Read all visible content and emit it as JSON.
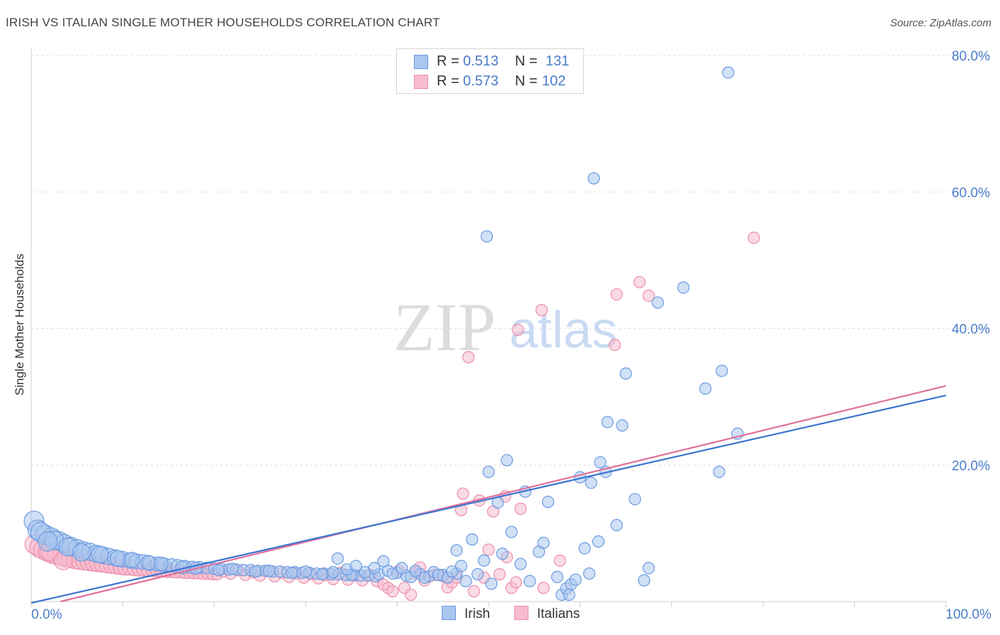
{
  "header": {
    "title": "IRISH VS ITALIAN SINGLE MOTHER HOUSEHOLDS CORRELATION CHART",
    "source": "Source: ZipAtlas.com"
  },
  "legend": {
    "irish": {
      "r_label": "R =",
      "r_value": "0.513",
      "n_label": "N =",
      "n_value": "131"
    },
    "italians": {
      "r_label": "R =",
      "r_value": "0.573",
      "n_label": "N =",
      "n_value": "102"
    }
  },
  "watermark": {
    "zip": "ZIP",
    "atlas": "atlas"
  },
  "colors": {
    "irish_fill": "#a9c6ef",
    "irish_stroke": "#6b9be0",
    "irish_line": "#3b74d1",
    "italians_fill": "#f6bccd",
    "italians_stroke": "#ec8fab",
    "italians_line": "#e0709a",
    "tick_color": "#4a7cc9",
    "grid": "#dddddd"
  },
  "chart_data": {
    "type": "scatter",
    "title": "IRISH VS ITALIAN SINGLE MOTHER HOUSEHOLDS CORRELATION CHART",
    "xlabel": "",
    "ylabel": "Single Mother Households",
    "xlim": [
      0,
      100
    ],
    "ylim": [
      0,
      80
    ],
    "x_tick_labels": [
      "0.0%",
      "100.0%"
    ],
    "y_ticks": [
      20,
      40,
      60,
      80
    ],
    "y_tick_labels": [
      "20.0%",
      "40.0%",
      "60.0%",
      "80.0%"
    ],
    "grid": "horizontal dashed",
    "legend_position": "top-center and bottom",
    "series": [
      {
        "name": "Irish",
        "r": 0.513,
        "n": 131,
        "trend": {
          "x": [
            0,
            100
          ],
          "y": [
            -0.2,
            30.2
          ]
        },
        "points": [
          [
            0.3,
            11.8
          ],
          [
            0.7,
            10.5
          ],
          [
            1.5,
            9.8
          ],
          [
            2.2,
            9.4
          ],
          [
            3.0,
            8.9
          ],
          [
            3.6,
            8.5
          ],
          [
            4.3,
            8.1
          ],
          [
            5.0,
            7.8
          ],
          [
            5.7,
            7.5
          ],
          [
            6.4,
            7.3
          ],
          [
            7.1,
            7.0
          ],
          [
            7.8,
            6.8
          ],
          [
            8.5,
            6.6
          ],
          [
            9.2,
            6.4
          ],
          [
            10.0,
            6.2
          ],
          [
            10.8,
            6.0
          ],
          [
            11.5,
            5.9
          ],
          [
            12.2,
            5.8
          ],
          [
            13.0,
            5.6
          ],
          [
            13.8,
            5.5
          ],
          [
            14.5,
            5.4
          ],
          [
            15.3,
            5.3
          ],
          [
            16.0,
            5.2
          ],
          [
            16.8,
            5.1
          ],
          [
            17.6,
            5.0
          ],
          [
            18.4,
            5.0
          ],
          [
            19.2,
            4.9
          ],
          [
            20.0,
            4.8
          ],
          [
            20.8,
            4.8
          ],
          [
            21.6,
            4.7
          ],
          [
            22.4,
            4.7
          ],
          [
            23.2,
            4.6
          ],
          [
            24.0,
            4.6
          ],
          [
            24.8,
            4.5
          ],
          [
            25.6,
            4.5
          ],
          [
            26.4,
            4.4
          ],
          [
            27.2,
            4.4
          ],
          [
            28.0,
            4.3
          ],
          [
            28.8,
            4.3
          ],
          [
            29.6,
            4.2
          ],
          [
            30.4,
            4.2
          ],
          [
            31.2,
            4.1
          ],
          [
            32.0,
            4.1
          ],
          [
            32.8,
            4.0
          ],
          [
            33.6,
            4.0
          ],
          [
            34.4,
            3.9
          ],
          [
            35.2,
            3.9
          ],
          [
            36.0,
            3.8
          ],
          [
            36.8,
            3.8
          ],
          [
            37.6,
            3.7
          ],
          [
            1.0,
            10.2
          ],
          [
            2.5,
            9.0
          ],
          [
            4.0,
            8.0
          ],
          [
            5.5,
            7.2
          ],
          [
            7.5,
            6.9
          ],
          [
            9.5,
            6.3
          ],
          [
            11.0,
            6.1
          ],
          [
            12.8,
            5.7
          ],
          [
            14.2,
            5.5
          ],
          [
            16.5,
            5.0
          ],
          [
            18.0,
            4.9
          ],
          [
            20.5,
            4.6
          ],
          [
            22.0,
            4.8
          ],
          [
            24.5,
            4.4
          ],
          [
            26.0,
            4.5
          ],
          [
            28.5,
            4.2
          ],
          [
            30.0,
            4.4
          ],
          [
            31.8,
            4.0
          ],
          [
            33.0,
            4.3
          ],
          [
            35.0,
            3.9
          ],
          [
            36.5,
            4.3
          ],
          [
            38.0,
            4.0
          ],
          [
            39.0,
            4.5
          ],
          [
            40.0,
            4.2
          ],
          [
            41.0,
            3.8
          ],
          [
            42.5,
            4.0
          ],
          [
            43.5,
            3.7
          ],
          [
            44.0,
            4.3
          ],
          [
            45.0,
            3.9
          ],
          [
            46.5,
            4.1
          ],
          [
            34.5,
            4.7
          ],
          [
            33.5,
            6.3
          ],
          [
            35.5,
            5.2
          ],
          [
            37.5,
            4.9
          ],
          [
            38.5,
            5.9
          ],
          [
            39.5,
            4.1
          ],
          [
            40.5,
            4.9
          ],
          [
            41.5,
            3.6
          ],
          [
            42.0,
            4.5
          ],
          [
            43.0,
            3.5
          ],
          [
            44.5,
            3.9
          ],
          [
            45.5,
            3.5
          ],
          [
            46.0,
            4.4
          ],
          [
            47.0,
            5.2
          ],
          [
            47.5,
            3.0
          ],
          [
            48.2,
            9.1
          ],
          [
            49.5,
            6.0
          ],
          [
            50.3,
            2.6
          ],
          [
            51.0,
            14.5
          ],
          [
            51.5,
            7.0
          ],
          [
            52.0,
            20.7
          ],
          [
            52.5,
            10.2
          ],
          [
            53.5,
            5.5
          ],
          [
            54.5,
            3.0
          ],
          [
            55.5,
            7.3
          ],
          [
            56.0,
            8.6
          ],
          [
            57.5,
            3.6
          ],
          [
            58.0,
            1.0
          ],
          [
            58.5,
            1.9
          ],
          [
            59.0,
            2.5
          ],
          [
            59.5,
            3.2
          ],
          [
            60.0,
            18.2
          ],
          [
            60.5,
            7.8
          ],
          [
            61.0,
            4.1
          ],
          [
            62.0,
            8.8
          ],
          [
            63.0,
            26.3
          ],
          [
            64.0,
            11.2
          ],
          [
            65.0,
            33.4
          ],
          [
            66.0,
            15.0
          ],
          [
            67.0,
            3.1
          ],
          [
            67.5,
            4.9
          ],
          [
            50.0,
            19.0
          ],
          [
            54.0,
            16.1
          ],
          [
            56.5,
            14.6
          ],
          [
            58.8,
            1.0
          ],
          [
            61.5,
            62.0
          ],
          [
            61.2,
            17.4
          ],
          [
            62.8,
            19.0
          ],
          [
            64.6,
            25.8
          ],
          [
            49.8,
            53.5
          ],
          [
            76.2,
            77.5
          ],
          [
            71.3,
            46.0
          ],
          [
            68.5,
            43.8
          ],
          [
            73.7,
            31.2
          ],
          [
            75.5,
            33.8
          ],
          [
            77.2,
            24.6
          ],
          [
            75.2,
            19.0
          ],
          [
            46.5,
            7.5
          ],
          [
            62.2,
            20.4
          ],
          [
            48.8,
            4.0
          ],
          [
            1.8,
            8.8
          ]
        ]
      },
      {
        "name": "Italians",
        "r": 0.573,
        "n": 102,
        "trend": {
          "x": [
            3.2,
            100
          ],
          "y": [
            0,
            31.6
          ]
        },
        "points": [
          [
            0.4,
            8.4
          ],
          [
            0.9,
            7.9
          ],
          [
            1.3,
            7.6
          ],
          [
            1.8,
            7.3
          ],
          [
            2.3,
            7.0
          ],
          [
            2.8,
            6.8
          ],
          [
            3.3,
            6.6
          ],
          [
            3.8,
            6.4
          ],
          [
            4.3,
            6.3
          ],
          [
            4.8,
            6.1
          ],
          [
            5.3,
            6.0
          ],
          [
            5.8,
            5.9
          ],
          [
            6.3,
            5.8
          ],
          [
            6.8,
            5.7
          ],
          [
            7.3,
            5.6
          ],
          [
            7.8,
            5.5
          ],
          [
            8.3,
            5.4
          ],
          [
            8.8,
            5.3
          ],
          [
            9.3,
            5.2
          ],
          [
            9.8,
            5.1
          ],
          [
            10.3,
            5.0
          ],
          [
            10.8,
            5.0
          ],
          [
            11.3,
            4.9
          ],
          [
            11.8,
            4.8
          ],
          [
            12.3,
            4.8
          ],
          [
            12.8,
            4.7
          ],
          [
            13.3,
            4.7
          ],
          [
            13.8,
            4.6
          ],
          [
            14.3,
            4.6
          ],
          [
            14.8,
            4.5
          ],
          [
            15.3,
            4.5
          ],
          [
            15.8,
            4.4
          ],
          [
            16.3,
            4.4
          ],
          [
            16.8,
            4.3
          ],
          [
            17.3,
            4.3
          ],
          [
            17.8,
            4.2
          ],
          [
            18.3,
            4.2
          ],
          [
            18.8,
            4.1
          ],
          [
            19.3,
            4.1
          ],
          [
            19.8,
            4.0
          ],
          [
            20.3,
            4.0
          ],
          [
            21.0,
            4.4
          ],
          [
            21.8,
            4.1
          ],
          [
            22.6,
            4.6
          ],
          [
            23.4,
            3.9
          ],
          [
            24.2,
            4.3
          ],
          [
            25.0,
            3.8
          ],
          [
            25.8,
            4.5
          ],
          [
            26.6,
            3.7
          ],
          [
            27.4,
            4.2
          ],
          [
            28.2,
            3.6
          ],
          [
            29.0,
            4.1
          ],
          [
            29.8,
            3.5
          ],
          [
            30.6,
            4.0
          ],
          [
            31.4,
            3.4
          ],
          [
            32.2,
            3.9
          ],
          [
            33.0,
            3.3
          ],
          [
            33.8,
            4.2
          ],
          [
            34.6,
            3.2
          ],
          [
            35.4,
            3.8
          ],
          [
            36.2,
            3.1
          ],
          [
            37.0,
            3.9
          ],
          [
            37.8,
            3.0
          ],
          [
            38.5,
            2.5
          ],
          [
            39.0,
            2.0
          ],
          [
            39.5,
            1.5
          ],
          [
            40.2,
            4.5
          ],
          [
            40.8,
            2.0
          ],
          [
            41.5,
            1.0
          ],
          [
            42.0,
            4.2
          ],
          [
            42.5,
            5.0
          ],
          [
            43.0,
            3.1
          ],
          [
            44.0,
            3.9
          ],
          [
            45.0,
            3.7
          ],
          [
            45.5,
            2.1
          ],
          [
            46.0,
            2.8
          ],
          [
            46.5,
            3.5
          ],
          [
            47.0,
            13.4
          ],
          [
            47.2,
            15.8
          ],
          [
            48.4,
            1.5
          ],
          [
            49.0,
            14.8
          ],
          [
            49.5,
            3.5
          ],
          [
            50.0,
            7.6
          ],
          [
            50.5,
            13.2
          ],
          [
            51.2,
            4.0
          ],
          [
            51.8,
            15.4
          ],
          [
            52.0,
            6.5
          ],
          [
            52.5,
            2.0
          ],
          [
            53.0,
            2.8
          ],
          [
            53.2,
            39.8
          ],
          [
            55.8,
            42.7
          ],
          [
            53.5,
            13.6
          ],
          [
            56.0,
            2.0
          ],
          [
            57.8,
            6.0
          ],
          [
            63.8,
            37.6
          ],
          [
            66.5,
            46.8
          ],
          [
            67.5,
            44.8
          ],
          [
            79.0,
            53.3
          ],
          [
            64.0,
            45.0
          ],
          [
            47.8,
            35.8
          ],
          [
            2.0,
            7.4
          ],
          [
            3.5,
            6.0
          ]
        ]
      }
    ]
  }
}
